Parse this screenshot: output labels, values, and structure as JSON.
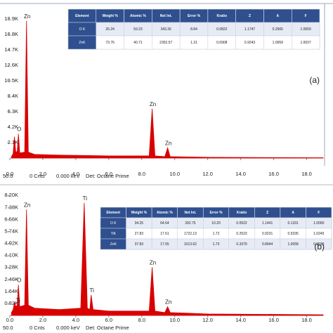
{
  "chart_data": [
    {
      "type": "line",
      "label": "(a)",
      "x": [
        0.1,
        0.2,
        0.28,
        0.36,
        0.45,
        0.52,
        0.6,
        0.9,
        1.01,
        1.12,
        1.5,
        3,
        6,
        8.45,
        8.63,
        8.8,
        9.4,
        9.57,
        9.72,
        12,
        19
      ],
      "series": [
        {
          "color": "#d90000",
          "values": [
            0.2,
            0.6,
            2.9,
            0.8,
            0.9,
            3.3,
            0.7,
            0.8,
            18.6,
            0.8,
            0.5,
            0.4,
            0.3,
            0.3,
            6.7,
            0.3,
            0.2,
            1.4,
            0.2,
            0.1,
            0.05
          ]
        }
      ],
      "xlim": [
        0,
        19
      ],
      "ylim": [
        0,
        20.5
      ],
      "xticks": [
        {
          "value": 0,
          "label": "0.0"
        },
        {
          "value": 2,
          "label": "2.0"
        },
        {
          "value": 4,
          "label": "4.0"
        },
        {
          "value": 6,
          "label": "6.0"
        },
        {
          "value": 8,
          "label": "8.0"
        },
        {
          "value": 10,
          "label": "10.0"
        },
        {
          "value": 12,
          "label": "12.0"
        },
        {
          "value": 14,
          "label": "14.0"
        },
        {
          "value": 16,
          "label": "16.0"
        },
        {
          "value": 18,
          "label": "18.0"
        }
      ],
      "yticks": [
        {
          "value": 2.1,
          "label": "2.1K"
        },
        {
          "value": 4.2,
          "label": "4.2K"
        },
        {
          "value": 6.3,
          "label": "6.3K"
        },
        {
          "value": 8.4,
          "label": "8.4K"
        },
        {
          "value": 10.5,
          "label": "10.5K"
        },
        {
          "value": 12.6,
          "label": "12.6K"
        },
        {
          "value": 14.7,
          "label": "14.7K"
        },
        {
          "value": 16.8,
          "label": "16.8K"
        },
        {
          "value": 18.9,
          "label": "18.9K"
        }
      ],
      "peak_labels": [
        {
          "text": "O",
          "x": 0.52,
          "y": 3.3
        },
        {
          "text": "Zn",
          "x": 1.01,
          "y": 18.6
        },
        {
          "text": "Zn",
          "x": 8.63,
          "y": 6.7
        },
        {
          "text": "Zn",
          "x": 9.57,
          "y": 1.4
        }
      ],
      "footer": [
        "50.0",
        "0 Cnts",
        "0.000 keV",
        "Det: Octane Prime"
      ],
      "table": {
        "columns": [
          "Element",
          "Weight %",
          "Atomic %",
          "Net Int.",
          "Error %",
          "Kratio",
          "Z",
          "A",
          "F"
        ],
        "rows": [
          [
            "O K",
            "26.24",
            "59.23",
            "343.36",
            "8.84",
            "0.0822",
            "1.1747",
            "0.2565",
            "1.0000"
          ],
          [
            "ZnK",
            "73.76",
            "40.71",
            "2352.57",
            "1.31",
            "0.6908",
            "0.9243",
            "1.0059",
            "1.0037"
          ]
        ]
      }
    },
    {
      "type": "line",
      "label": "(b)",
      "x": [
        0.1,
        0.2,
        0.28,
        0.36,
        0.45,
        0.52,
        0.6,
        0.9,
        1.01,
        1.12,
        1.5,
        3,
        4.3,
        4.51,
        4.7,
        4.85,
        4.93,
        5.05,
        6,
        8.45,
        8.63,
        8.8,
        9.4,
        9.57,
        9.72,
        12,
        19
      ],
      "series": [
        {
          "color": "#d90000",
          "values": [
            0.2,
            0.4,
            0.9,
            0.6,
            0.7,
            2.1,
            0.6,
            0.7,
            7.24,
            0.7,
            0.5,
            0.4,
            0.5,
            7.7,
            0.5,
            0.4,
            1.4,
            0.4,
            0.3,
            0.3,
            3.3,
            0.3,
            0.2,
            0.6,
            0.2,
            0.1,
            0.05
          ]
        }
      ],
      "xlim": [
        0,
        19
      ],
      "ylim": [
        0,
        8.5
      ],
      "xticks": [
        {
          "value": 0,
          "label": "0.0"
        },
        {
          "value": 2,
          "label": "2.0"
        },
        {
          "value": 4,
          "label": "4.0"
        },
        {
          "value": 6,
          "label": "6.0"
        },
        {
          "value": 8,
          "label": "8.0"
        },
        {
          "value": 10,
          "label": "10.0"
        },
        {
          "value": 12,
          "label": "12.0"
        },
        {
          "value": 14,
          "label": "14.0"
        },
        {
          "value": 16,
          "label": "16.0"
        },
        {
          "value": 18,
          "label": "18.0"
        }
      ],
      "yticks": [
        {
          "value": 0.82,
          "label": "0.82K"
        },
        {
          "value": 1.64,
          "label": "1.64K"
        },
        {
          "value": 2.46,
          "label": "2.46K"
        },
        {
          "value": 3.28,
          "label": "3.28K"
        },
        {
          "value": 4.1,
          "label": "4.10K"
        },
        {
          "value": 4.92,
          "label": "4.92K"
        },
        {
          "value": 5.74,
          "label": "5.74K"
        },
        {
          "value": 6.56,
          "label": "6.56K"
        },
        {
          "value": 7.38,
          "label": "7.38K"
        },
        {
          "value": 8.2,
          "label": "8.20K"
        }
      ],
      "peak_labels": [
        {
          "text": "Ti",
          "x": 0.45,
          "y": 0.7
        },
        {
          "text": "O",
          "x": 0.52,
          "y": 2.1
        },
        {
          "text": "Zn",
          "x": 1.01,
          "y": 7.24
        },
        {
          "text": "Ti",
          "x": 4.51,
          "y": 7.7
        },
        {
          "text": "Ti",
          "x": 4.93,
          "y": 1.4
        },
        {
          "text": "Zn",
          "x": 8.63,
          "y": 3.3
        },
        {
          "text": "Zn",
          "x": 9.57,
          "y": 0.6
        }
      ],
      "footer": [
        "50.0",
        "0 Cnts",
        "0.000 keV",
        "Det: Octane Prime"
      ],
      "table": {
        "columns": [
          "Element",
          "Weight %",
          "Atomic %",
          "Net Int.",
          "Error %",
          "Kratio",
          "Z",
          "A",
          "F"
        ],
        "rows": [
          [
            "O K",
            "34.25",
            "64.64",
            "392.75",
            "10.20",
            "0.0522",
            "1.1441",
            "0.1331",
            "1.0000"
          ],
          [
            "TiK",
            "27.83",
            "17.61",
            "1722.13",
            "1.72",
            "0.2523",
            "0.9231",
            "0.9335",
            "1.0245"
          ],
          [
            "ZnK",
            "37.83",
            "17.55",
            "1013.62",
            "1.73",
            "0.3379",
            "0.8944",
            "1.0058",
            "0.9930"
          ]
        ]
      }
    }
  ]
}
